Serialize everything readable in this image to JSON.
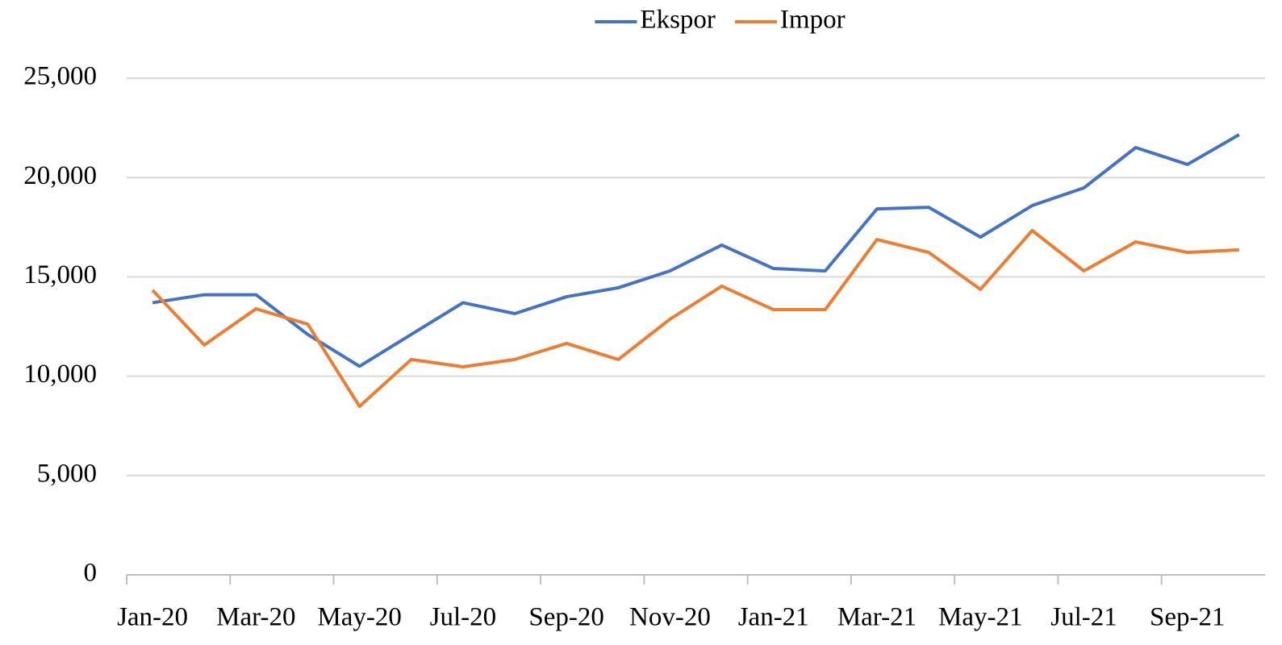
{
  "chart_data": {
    "type": "line",
    "categories": [
      "Jan-20",
      null,
      "Mar-20",
      null,
      "May-20",
      null,
      "Jul-20",
      null,
      "Sep-20",
      null,
      "Nov-20",
      null,
      "Jan-21",
      null,
      "Mar-21",
      null,
      "May-21",
      null,
      "Jul-21",
      null,
      "Sep-21",
      null
    ],
    "series": [
      {
        "name": "Ekspor",
        "color": "#4472c4",
        "values": [
          13700,
          14100,
          14100,
          12100,
          10500,
          12100,
          13700,
          13150,
          14000,
          14450,
          15300,
          16600,
          15420,
          15300,
          18420,
          18500,
          17000,
          18590,
          19480,
          21510,
          20660,
          22160
        ]
      },
      {
        "name": "Impor",
        "color": "#ed7d31",
        "values": [
          14330,
          11570,
          13390,
          12620,
          8480,
          10840,
          10470,
          10840,
          11650,
          10840,
          12870,
          14530,
          13350,
          13350,
          16880,
          16230,
          14370,
          17330,
          15300,
          16760,
          16230,
          16360
        ]
      }
    ],
    "ylim": [
      0,
      25000
    ],
    "yticks": [
      0,
      {
        "value": 5000,
        "label": "5,000"
      },
      {
        "value": 10000,
        "label": "10,000"
      },
      {
        "value": 15000,
        "label": "15,000"
      },
      {
        "value": 20000,
        "label": "20,000"
      },
      {
        "value": 25000,
        "label": "25,000"
      }
    ],
    "grid": true,
    "legend": "top"
  }
}
